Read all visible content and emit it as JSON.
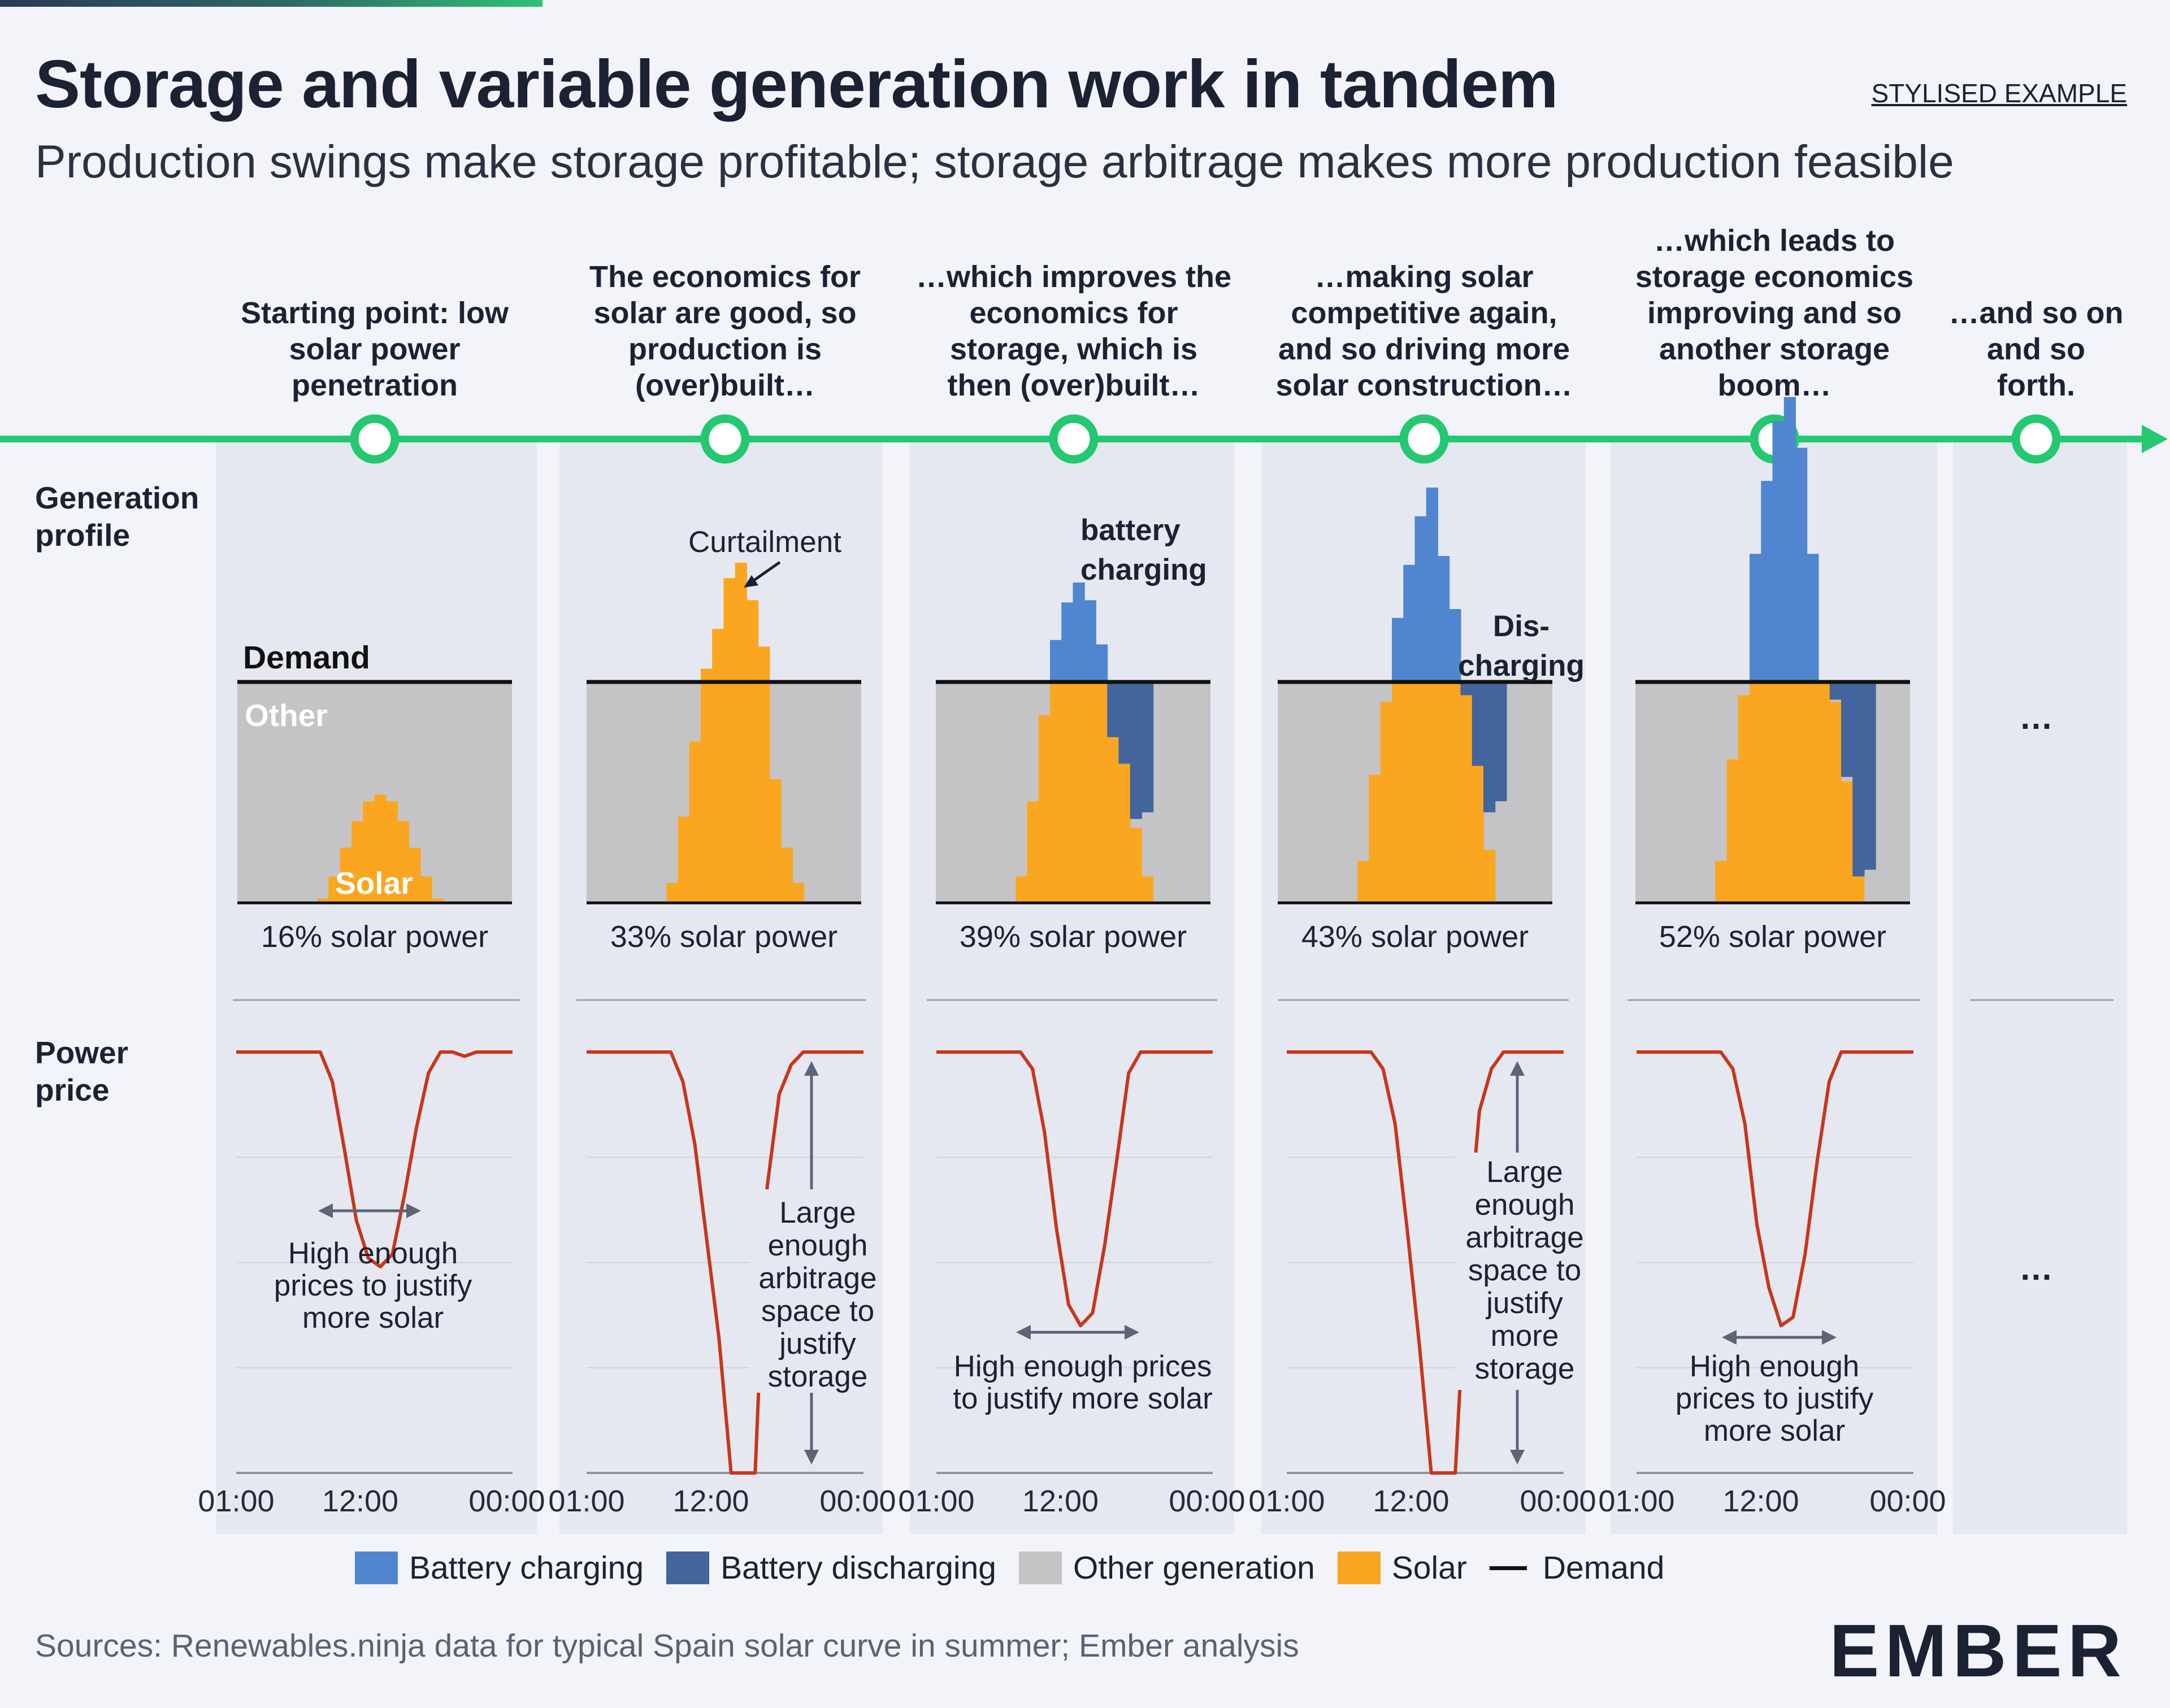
{
  "header": {
    "title": "Storage and variable generation work in tandem",
    "subtitle": "Production swings make storage profitable; storage arbitrage makes more production feasible",
    "tag": "STYLISED EXAMPLE"
  },
  "row_labels": {
    "generation": [
      "Generation",
      "profile"
    ],
    "price": [
      "Power",
      "price"
    ]
  },
  "steps": [
    {
      "lines": [
        "Starting point: low",
        "solar power",
        "penetration"
      ]
    },
    {
      "lines": [
        "The economics for",
        "solar are good, so",
        "production is",
        "(over)built…"
      ]
    },
    {
      "lines": [
        "…which improves the",
        "economics for",
        "storage, which is",
        "then (over)built…"
      ]
    },
    {
      "lines": [
        "…making solar",
        "competitive again,",
        "and so driving more",
        "solar construction…"
      ]
    },
    {
      "lines": [
        "…which leads to",
        "storage economics",
        "improving and so",
        "another storage",
        "boom…"
      ]
    },
    {
      "lines": [
        "…and so on",
        "and so",
        "forth."
      ]
    }
  ],
  "annotations": {
    "demand": "Demand",
    "other": "Other",
    "solar": "Solar",
    "curtailment": "Curtailment",
    "battery_charging": [
      "battery",
      "charging"
    ],
    "discharging": [
      "Dis-",
      "charging"
    ],
    "ellipsis": "…",
    "price_notes": [
      [
        "High enough",
        "prices to justify",
        "more solar"
      ],
      [
        "Large",
        "enough",
        "arbitrage",
        "space to",
        "justify",
        "storage"
      ],
      [
        "High enough prices",
        "to justify more solar"
      ],
      [
        "Large",
        "enough",
        "arbitrage",
        "space to",
        "justify",
        "more",
        "storage"
      ],
      [
        "High enough",
        "prices to justify",
        "more solar"
      ]
    ]
  },
  "colors": {
    "solar": "#fba620",
    "other": "#c4c4c6",
    "battery_charging": "#4f86cf",
    "battery_discharging": "#41659c",
    "price_line": "#c8361b",
    "timeline": "#23c870",
    "panel": "#e6e8f1",
    "curtail_label": "#3d7bd2",
    "discharge_label": "#1f4e79"
  },
  "chart_data": [
    {
      "type": "area",
      "title": "Generation profile",
      "x_ticks": [
        "01:00",
        "12:00",
        "00:00"
      ],
      "panels": [
        {
          "solar_share": "16% solar power",
          "demand": 1.0,
          "solar": [
            0,
            0,
            0,
            0,
            0,
            0,
            0,
            0.02,
            0.12,
            0.25,
            0.37,
            0.46,
            0.49,
            0.46,
            0.37,
            0.25,
            0.12,
            0.02,
            0,
            0,
            0,
            0,
            0,
            0
          ],
          "battery_charging": [],
          "battery_discharging": []
        },
        {
          "solar_share": "33% solar power",
          "demand": 1.0,
          "solar": [
            0,
            0,
            0,
            0,
            0,
            0,
            0,
            0.09,
            0.39,
            0.73,
            1.06,
            1.24,
            1.47,
            1.54,
            1.37,
            1.16,
            0.56,
            0.25,
            0.09,
            0,
            0,
            0,
            0,
            0
          ],
          "battery_charging": [],
          "battery_discharging": []
        },
        {
          "solar_share": "39% solar power",
          "demand": 1.0,
          "solar": [
            0,
            0,
            0,
            0,
            0,
            0,
            0,
            0.12,
            0.46,
            0.85,
            1.0,
            1.0,
            1.0,
            1.0,
            1.0,
            0.99,
            0.72,
            0.34,
            0.12,
            0,
            0,
            0,
            0,
            0
          ],
          "battery_charging": [
            0,
            0,
            0,
            0,
            0,
            0,
            0,
            0,
            0,
            0,
            0.19,
            0.36,
            0.45,
            0.37,
            0.17,
            0,
            0,
            0,
            0,
            0,
            0,
            0,
            0,
            0
          ],
          "battery_discharging": [
            0,
            0,
            0,
            0,
            0,
            0,
            0,
            0,
            0,
            0,
            0,
            0,
            0,
            0,
            0,
            0.25,
            0.37,
            0.62,
            0.59,
            0,
            0,
            0,
            0,
            0
          ]
        },
        {
          "solar_share": "43% solar power",
          "demand": 1.0,
          "solar": [
            0,
            0,
            0,
            0,
            0,
            0,
            0,
            0.19,
            0.58,
            0.91,
            1.0,
            1.0,
            1.0,
            1.0,
            1.0,
            1.0,
            0.94,
            0.62,
            0.24,
            0,
            0,
            0,
            0,
            0
          ],
          "battery_charging": [
            0,
            0,
            0,
            0,
            0,
            0,
            0,
            0,
            0,
            0,
            0.29,
            0.53,
            0.75,
            0.88,
            0.57,
            0.33,
            0,
            0,
            0,
            0,
            0,
            0,
            0,
            0
          ],
          "battery_discharging": [
            0,
            0,
            0,
            0,
            0,
            0,
            0,
            0,
            0,
            0,
            0,
            0,
            0,
            0,
            0,
            0,
            0.06,
            0.38,
            0.59,
            0.54,
            0,
            0,
            0,
            0
          ]
        },
        {
          "solar_share": "52% solar power",
          "demand": 1.0,
          "solar": [
            0,
            0,
            0,
            0,
            0,
            0,
            0,
            0.19,
            0.65,
            0.94,
            1.0,
            1.0,
            1.0,
            1.0,
            1.0,
            1.0,
            1.0,
            0.91,
            0.55,
            0.12,
            0,
            0,
            0,
            0
          ],
          "battery_charging": [
            0,
            0,
            0,
            0,
            0,
            0,
            0,
            0,
            0,
            0,
            0.58,
            0.91,
            1.18,
            1.29,
            1.06,
            0.58,
            0,
            0,
            0,
            0,
            0,
            0,
            0,
            0
          ],
          "battery_discharging": [
            0,
            0,
            0,
            0,
            0,
            0,
            0,
            0,
            0,
            0,
            0,
            0,
            0,
            0,
            0,
            0,
            0,
            0.08,
            0.43,
            0.88,
            0.85,
            0,
            0,
            0
          ]
        }
      ]
    },
    {
      "type": "line",
      "title": "Power price",
      "x_ticks": [
        "01:00",
        "12:00",
        "00:00"
      ],
      "ylim": [
        0,
        1
      ],
      "panels": [
        {
          "price": [
            1,
            1,
            1,
            1,
            1,
            1,
            1,
            1,
            0.93,
            0.77,
            0.6,
            0.51,
            0.49,
            0.52,
            0.66,
            0.82,
            0.95,
            1,
            1,
            0.99,
            1,
            1,
            1,
            1
          ]
        },
        {
          "price": [
            1,
            1,
            1,
            1,
            1,
            1,
            1,
            1,
            0.93,
            0.78,
            0.55,
            0.32,
            0.0,
            0.0,
            0.0,
            0.68,
            0.9,
            0.97,
            1,
            1,
            1,
            1,
            1,
            1
          ]
        },
        {
          "price": [
            1,
            1,
            1,
            1,
            1,
            1,
            1,
            1,
            0.96,
            0.81,
            0.58,
            0.4,
            0.35,
            0.38,
            0.54,
            0.74,
            0.95,
            1,
            1,
            1,
            1,
            1,
            1,
            1
          ]
        },
        {
          "price": [
            1,
            1,
            1,
            1,
            1,
            1,
            1,
            1,
            0.96,
            0.83,
            0.58,
            0.31,
            0.0,
            0.0,
            0.0,
            0.53,
            0.86,
            0.96,
            1,
            1,
            1,
            1,
            1,
            1
          ]
        },
        {
          "price": [
            1,
            1,
            1,
            1,
            1,
            1,
            1,
            1,
            0.96,
            0.83,
            0.59,
            0.44,
            0.35,
            0.37,
            0.52,
            0.74,
            0.93,
            1,
            1,
            1,
            1,
            1,
            1,
            1
          ]
        }
      ]
    }
  ],
  "legend": [
    {
      "label": "Battery charging",
      "color": "#4f86cf"
    },
    {
      "label": "Battery discharging",
      "color": "#41659c"
    },
    {
      "label": "Other generation",
      "color": "#c4c4c6"
    },
    {
      "label": "Solar",
      "color": "#fba620"
    },
    {
      "label": "Demand",
      "line": true
    }
  ],
  "footer": {
    "source": "Sources: Renewables.ninja data for typical Spain solar curve in summer; Ember analysis",
    "logo": "EMBER"
  }
}
